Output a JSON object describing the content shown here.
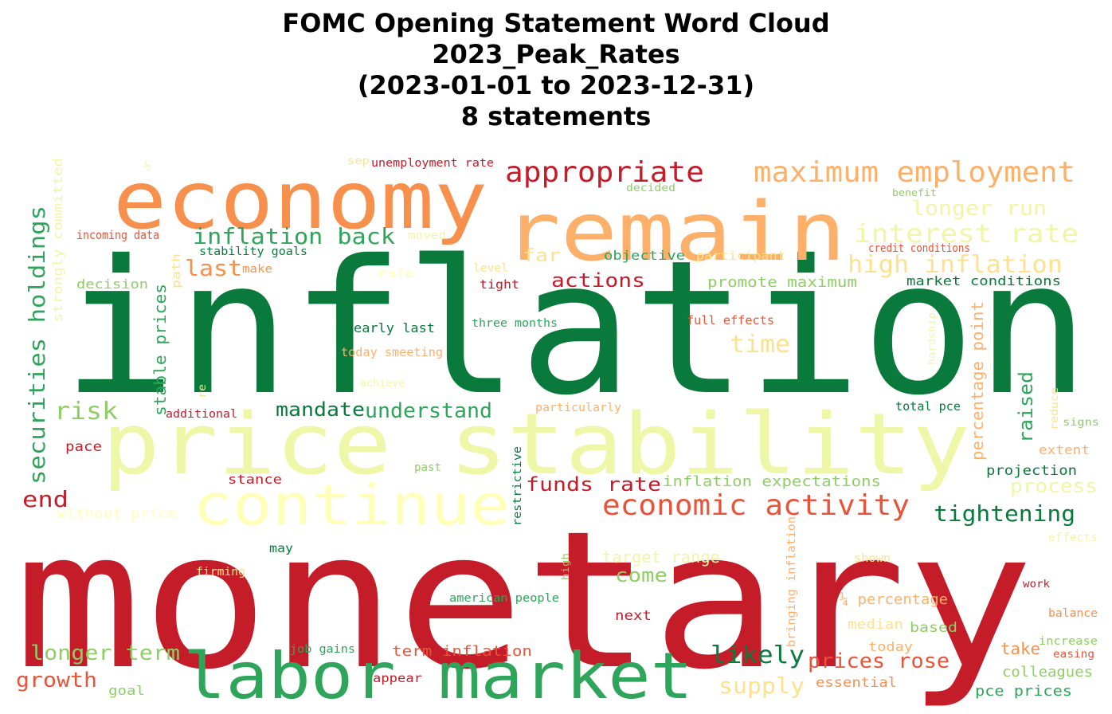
{
  "title_lines": [
    "FOMC Opening Statement Word Cloud",
    "2023_Peak_Rates",
    "(2023-01-01 to 2023-12-31)",
    "8 statements"
  ],
  "palette": {
    "dark_green": "#0a7a3c",
    "green": "#2ea55a",
    "light_green": "#8fcd66",
    "pale_yellow_green": "#eef7a8",
    "pale_yellow": "#ffffb8",
    "light_yellow": "#fde18c",
    "light_orange": "#fdb06a",
    "orange": "#f7904d",
    "red_orange": "#e6553a",
    "red": "#c41c29"
  },
  "words": [
    {
      "text": "inflation",
      "color": "#0a7a3c"
    },
    {
      "text": "monetary",
      "color": "#c41c29"
    },
    {
      "text": "price stability",
      "color": "#eef7a8"
    },
    {
      "text": "economy",
      "color": "#f7904d"
    },
    {
      "text": "remain",
      "color": "#fdb06a"
    },
    {
      "text": "labor market",
      "color": "#2ea55a"
    },
    {
      "text": "continue",
      "color": "#ffffb8"
    },
    {
      "text": "appropriate",
      "color": "#c41c29"
    },
    {
      "text": "maximum employment",
      "color": "#fdb06a"
    },
    {
      "text": "economic activity",
      "color": "#e6553a"
    },
    {
      "text": "interest rate",
      "color": "#eef7a8"
    },
    {
      "text": "high inflation",
      "color": "#fde18c"
    },
    {
      "text": "inflation back",
      "color": "#2ea55a"
    },
    {
      "text": "longer run",
      "color": "#eef7a8"
    },
    {
      "text": "securities holdings",
      "color": "#2ea55a"
    },
    {
      "text": "tightening",
      "color": "#0a7a3c"
    },
    {
      "text": "understand",
      "color": "#2ea55a"
    },
    {
      "text": "mandate",
      "color": "#0a7a3c"
    },
    {
      "text": "risk",
      "color": "#8fcd66"
    },
    {
      "text": "last",
      "color": "#f7904d"
    },
    {
      "text": "actions",
      "color": "#c41c29"
    },
    {
      "text": "time",
      "color": "#fde18c"
    },
    {
      "text": "end",
      "color": "#c41c29"
    },
    {
      "text": "funds rate",
      "color": "#c41c29"
    },
    {
      "text": "longer term",
      "color": "#8fcd66"
    },
    {
      "text": "growth",
      "color": "#e6553a"
    },
    {
      "text": "likely",
      "color": "#0a7a3c"
    },
    {
      "text": "prices rose",
      "color": "#e6553a"
    },
    {
      "text": "supply",
      "color": "#fde18c"
    },
    {
      "text": "come",
      "color": "#8fcd66"
    },
    {
      "text": "raised",
      "color": "#2ea55a"
    },
    {
      "text": "percentage point",
      "color": "#fdb06a"
    },
    {
      "text": "process",
      "color": "#eef7a8"
    },
    {
      "text": "far",
      "color": "#fde18c"
    },
    {
      "text": "promote maximum",
      "color": "#8fcd66"
    },
    {
      "text": "inflation expectations",
      "color": "#8fcd66"
    },
    {
      "text": "stable prices",
      "color": "#2ea55a"
    },
    {
      "text": "strongly committed",
      "color": "#eef7a8"
    },
    {
      "text": "decision",
      "color": "#8fcd66"
    },
    {
      "text": "incoming data",
      "color": "#e6553a"
    },
    {
      "text": "stability goals",
      "color": "#0a7a3c"
    },
    {
      "text": "moved",
      "color": "#eef7a8"
    },
    {
      "text": "objective",
      "color": "#2ea55a"
    },
    {
      "text": "participant",
      "color": "#fde18c"
    },
    {
      "text": "credit conditions",
      "color": "#e6553a"
    },
    {
      "text": "market conditions",
      "color": "#0a7a3c"
    },
    {
      "text": "early last",
      "color": "#0a7a3c"
    },
    {
      "text": "three months",
      "color": "#2ea55a"
    },
    {
      "text": "full effects",
      "color": "#e6553a"
    },
    {
      "text": "today smeeting",
      "color": "#fdb06a"
    },
    {
      "text": "tight",
      "color": "#c41c29"
    },
    {
      "text": "level",
      "color": "#fde18c"
    },
    {
      "text": "rate",
      "color": "#ffffb8"
    },
    {
      "text": "make",
      "color": "#f7904d"
    },
    {
      "text": "path",
      "color": "#fde18c"
    },
    {
      "text": "achieve",
      "color": "#eef7a8"
    },
    {
      "text": "re",
      "color": "#fde18c"
    },
    {
      "text": "additional",
      "color": "#c41c29"
    },
    {
      "text": "particularly",
      "color": "#fdb06a"
    },
    {
      "text": "total pce",
      "color": "#0a7a3c"
    },
    {
      "text": "hardship",
      "color": "#eef7a8"
    },
    {
      "text": "reduce",
      "color": "#fde18c"
    },
    {
      "text": "signs",
      "color": "#8fcd66"
    },
    {
      "text": "extent",
      "color": "#fdb06a"
    },
    {
      "text": "projection",
      "color": "#0a7a3c"
    },
    {
      "text": "pace",
      "color": "#c41c29"
    },
    {
      "text": "past",
      "color": "#8fcd66"
    },
    {
      "text": "stance",
      "color": "#c41c29"
    },
    {
      "text": "restrictive",
      "color": "#0a7a3c"
    },
    {
      "text": "without price",
      "color": "#ffffb8"
    },
    {
      "text": "may",
      "color": "#0a7a3c"
    },
    {
      "text": "firming",
      "color": "#fde18c"
    },
    {
      "text": "target range",
      "color": "#eef7a8"
    },
    {
      "text": "high",
      "color": "#8fcd66"
    },
    {
      "text": "bringing inflation",
      "color": "#fdb06a"
    },
    {
      "text": "shown",
      "color": "#fde18c"
    },
    {
      "text": "effects",
      "color": "#eef7a8"
    },
    {
      "text": "american people",
      "color": "#2ea55a"
    },
    {
      "text": "next",
      "color": "#c41c29"
    },
    {
      "text": "¼ percentage",
      "color": "#fdb06a"
    },
    {
      "text": "work",
      "color": "#c41c29"
    },
    {
      "text": "balance",
      "color": "#f7904d"
    },
    {
      "text": "median",
      "color": "#fde18c"
    },
    {
      "text": "based",
      "color": "#8fcd66"
    },
    {
      "text": "increase",
      "color": "#8fcd66"
    },
    {
      "text": "easing",
      "color": "#e6553a"
    },
    {
      "text": "take",
      "color": "#f7904d"
    },
    {
      "text": "today",
      "color": "#fdb06a"
    },
    {
      "text": "colleagues",
      "color": "#8fcd66"
    },
    {
      "text": "essential",
      "color": "#f7904d"
    },
    {
      "text": "pce prices",
      "color": "#2ea55a"
    },
    {
      "text": "job gains",
      "color": "#2ea55a"
    },
    {
      "text": "term inflation",
      "color": "#e6553a"
    },
    {
      "text": "appear",
      "color": "#c41c29"
    },
    {
      "text": "goal",
      "color": "#8fcd66"
    },
    {
      "text": "unemployment rate",
      "color": "#c41c29"
    },
    {
      "text": "sep",
      "color": "#fde18c"
    },
    {
      "text": "½",
      "color": "#eef7a8"
    },
    {
      "text": "decided",
      "color": "#8fcd66"
    },
    {
      "text": "benefit",
      "color": "#8fcd66"
    }
  ]
}
